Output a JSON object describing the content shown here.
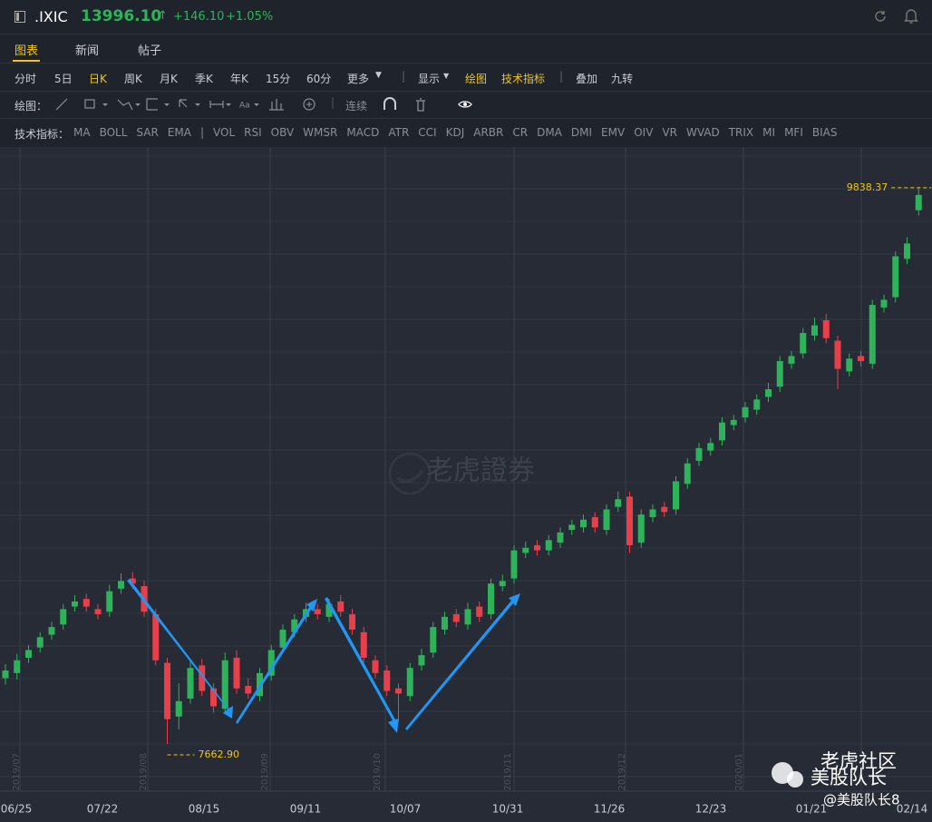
{
  "header": {
    "symbol": ".IXIC",
    "price": "13996.10",
    "arrow": "↑",
    "change": "+146.10",
    "change_pct": "+1.05%"
  },
  "tabs": [
    "图表",
    "新闻",
    "帖子"
  ],
  "periods": [
    "分时",
    "5日",
    "日K",
    "周K",
    "月K",
    "季K",
    "年K",
    "15分",
    "60分",
    "更多"
  ],
  "period_actions": [
    "显示",
    "绘图",
    "技术指标",
    "叠加",
    "九转"
  ],
  "draw_label": "绘图：",
  "draw_continuous": "连续",
  "indicator_label": "技术指标：",
  "indicators_main": [
    "MA",
    "BOLL",
    "SAR",
    "EMA"
  ],
  "indicators_sub": [
    "VOL",
    "RSI",
    "OBV",
    "WMSR",
    "MACD",
    "ATR",
    "CCI",
    "KDJ",
    "ARBR",
    "CR",
    "DMA",
    "DMI",
    "EMV",
    "OIV",
    "VR",
    "WVAD",
    "TRIX",
    "MI",
    "MFI",
    "BIAS"
  ],
  "chart_data": {
    "type": "candlestick",
    "up_color": "#2fb35a",
    "down_color": "#e8404a",
    "ylim": [
      7503,
      9987
    ],
    "x_labels": [
      "06/25",
      "07/22",
      "08/15",
      "09/11",
      "10/07",
      "10/31",
      "11/26",
      "12/23",
      "01/21",
      "02/14"
    ],
    "month_labels": [
      "2019/07",
      "2019/08",
      "2019/09",
      "2019/10",
      "2019/11",
      "2019/12",
      "2020/01"
    ],
    "open": [
      7920,
      7940,
      8000,
      8040,
      8090,
      8130,
      8200,
      8230,
      8190,
      8180,
      8270,
      8310,
      8280,
      8170,
      7980,
      7770,
      7840,
      7970,
      7880,
      7800,
      8000,
      7890,
      7850,
      7930,
      8040,
      8100,
      8160,
      8190,
      8160,
      8220,
      8170,
      8100,
      7990,
      7950,
      7880,
      7850,
      7970,
      8020,
      8110,
      8170,
      8130,
      8200,
      8170,
      8280,
      8310,
      8410,
      8440,
      8420,
      8450,
      8500,
      8510,
      8550,
      8500,
      8590,
      8630,
      8450,
      8550,
      8590,
      8580,
      8680,
      8770,
      8810,
      8850,
      8910,
      8940,
      8970,
      9020,
      9060,
      9150,
      9190,
      9260,
      9320,
      9240,
      9120,
      9180,
      9150,
      9370,
      9410,
      9560,
      9750
    ],
    "high": [
      7975,
      8015,
      8050,
      8100,
      8140,
      8210,
      8245,
      8250,
      8210,
      8285,
      8330,
      8335,
      8300,
      8190,
      8000,
      7900,
      7990,
      7995,
      7900,
      8020,
      8030,
      7920,
      7960,
      8050,
      8130,
      8170,
      8215,
      8210,
      8230,
      8245,
      8190,
      8120,
      8010,
      7970,
      7900,
      7980,
      8035,
      8140,
      8180,
      8190,
      8215,
      8220,
      8310,
      8325,
      8440,
      8455,
      8460,
      8480,
      8510,
      8540,
      8560,
      8570,
      8600,
      8650,
      8650,
      8580,
      8600,
      8610,
      8710,
      8780,
      8840,
      8860,
      8940,
      8950,
      9000,
      9030,
      9075,
      9180,
      9200,
      9290,
      9330,
      9345,
      9260,
      9190,
      9200,
      9400,
      9420,
      9590,
      9645,
      9838.37
    ],
    "low": [
      7895,
      7915,
      7980,
      8020,
      8070,
      8110,
      8180,
      8180,
      8150,
      8160,
      8250,
      8270,
      8160,
      7970,
      7662.9,
      7720,
      7820,
      7850,
      7785,
      7780,
      7860,
      7840,
      7830,
      7910,
      8020,
      8080,
      8140,
      8150,
      8140,
      8160,
      8090,
      7980,
      7920,
      7850,
      7760,
      7830,
      7950,
      8000,
      8090,
      8120,
      8110,
      8140,
      8150,
      8260,
      8290,
      8390,
      8400,
      8400,
      8430,
      8480,
      8490,
      8490,
      8480,
      8570,
      8410,
      8430,
      8530,
      8550,
      8560,
      8660,
      8750,
      8790,
      8830,
      8890,
      8920,
      8950,
      9000,
      9040,
      9130,
      9170,
      9240,
      9230,
      9050,
      9100,
      9140,
      9130,
      9350,
      9390,
      9540,
      9730
    ],
    "close": [
      7950,
      7990,
      8030,
      8080,
      8120,
      8190,
      8220,
      8200,
      8170,
      8260,
      8300,
      8290,
      8180,
      7990,
      7760,
      7830,
      7960,
      7870,
      7810,
      7990,
      7880,
      7860,
      7940,
      8030,
      8110,
      8150,
      8190,
      8170,
      8210,
      8180,
      8110,
      8000,
      7940,
      7870,
      7860,
      7960,
      8010,
      8120,
      8160,
      8140,
      8190,
      8160,
      8290,
      8300,
      8420,
      8430,
      8420,
      8460,
      8490,
      8520,
      8540,
      8510,
      8580,
      8620,
      8440,
      8560,
      8580,
      8570,
      8690,
      8760,
      8820,
      8840,
      8920,
      8930,
      8980,
      9010,
      9050,
      9160,
      9180,
      9270,
      9300,
      9250,
      9130,
      9170,
      9160,
      9380,
      9400,
      9570,
      9620,
      9810
    ],
    "annotations": [
      {
        "value": 9838.37,
        "label": "9838.37"
      },
      {
        "value": 7662.9,
        "label": "7662.90"
      }
    ]
  },
  "watermark": "老虎證券",
  "credit": {
    "title": "老虎社区",
    "name": "美股队长",
    "handle": "@美股队长8"
  }
}
